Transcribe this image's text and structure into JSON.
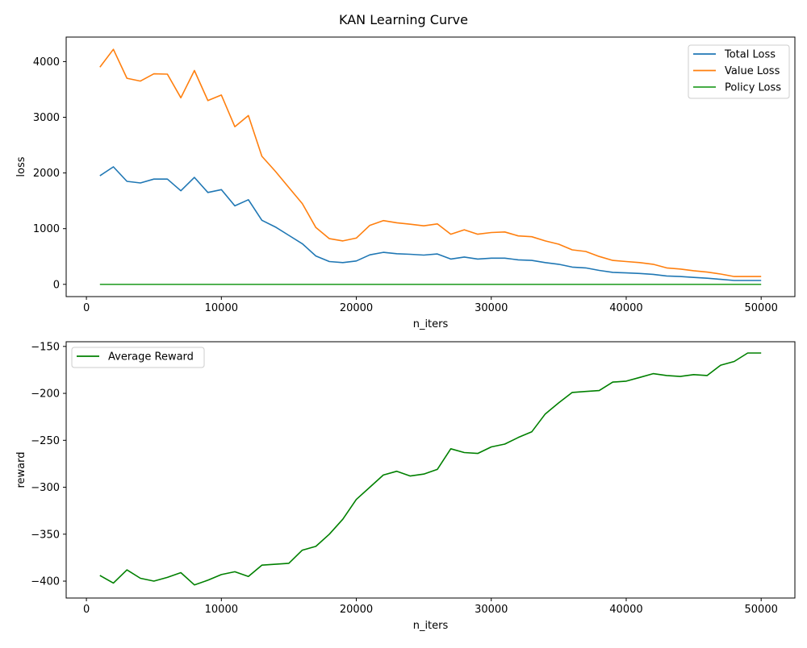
{
  "figure": {
    "title": "KAN Learning Curve"
  },
  "chart_data": [
    {
      "type": "line",
      "xlabel": "n_iters",
      "ylabel": "loss",
      "xlim": [
        -1500,
        52500
      ],
      "ylim": [
        -220,
        4440
      ],
      "xticks": [
        0,
        10000,
        20000,
        30000,
        40000,
        50000
      ],
      "xtick_labels": [
        "0",
        "10000",
        "20000",
        "30000",
        "40000",
        "50000"
      ],
      "yticks": [
        0,
        1000,
        2000,
        3000,
        4000
      ],
      "ytick_labels": [
        "0",
        "1000",
        "2000",
        "3000",
        "4000"
      ],
      "legend_position": "top-right",
      "grid": false,
      "x": [
        1000,
        2000,
        3000,
        4000,
        5000,
        6000,
        7000,
        8000,
        9000,
        10000,
        11000,
        12000,
        13000,
        14000,
        15000,
        16000,
        17000,
        18000,
        19000,
        20000,
        21000,
        22000,
        23000,
        24000,
        25000,
        26000,
        27000,
        28000,
        29000,
        30000,
        31000,
        32000,
        33000,
        34000,
        35000,
        36000,
        37000,
        38000,
        39000,
        40000,
        41000,
        42000,
        43000,
        44000,
        45000,
        46000,
        47000,
        48000,
        49000,
        50000
      ],
      "series": [
        {
          "name": "Total Loss",
          "color": "#1f77b4",
          "values": [
            1950,
            2110,
            1850,
            1820,
            1890,
            1890,
            1680,
            1920,
            1650,
            1700,
            1410,
            1520,
            1150,
            1030,
            880,
            730,
            510,
            410,
            390,
            420,
            530,
            575,
            550,
            540,
            525,
            545,
            455,
            490,
            455,
            470,
            470,
            440,
            430,
            390,
            360,
            310,
            295,
            250,
            215,
            205,
            195,
            180,
            150,
            140,
            125,
            110,
            90,
            70,
            70,
            70
          ]
        },
        {
          "name": "Value Loss",
          "color": "#ff7f0e",
          "values": [
            3900,
            4220,
            3700,
            3650,
            3780,
            3775,
            3350,
            3840,
            3300,
            3400,
            2830,
            3030,
            2300,
            2030,
            1740,
            1450,
            1020,
            820,
            780,
            830,
            1060,
            1145,
            1105,
            1080,
            1050,
            1085,
            900,
            980,
            900,
            930,
            940,
            870,
            855,
            780,
            720,
            620,
            590,
            500,
            430,
            410,
            390,
            360,
            295,
            275,
            245,
            220,
            185,
            140,
            140,
            140
          ]
        },
        {
          "name": "Policy Loss",
          "color": "#2ca02c",
          "values": [
            0,
            0,
            0,
            0,
            0,
            0,
            0,
            0,
            0,
            0,
            0,
            0,
            0,
            0,
            0,
            0,
            0,
            0,
            0,
            0,
            0,
            0,
            0,
            0,
            0,
            0,
            0,
            0,
            0,
            0,
            0,
            0,
            0,
            0,
            0,
            0,
            0,
            0,
            0,
            0,
            0,
            0,
            0,
            0,
            0,
            0,
            0,
            0,
            0,
            0
          ]
        }
      ]
    },
    {
      "type": "line",
      "xlabel": "n_iters",
      "ylabel": "reward",
      "xlim": [
        -1500,
        52500
      ],
      "ylim": [
        -418,
        -145
      ],
      "xticks": [
        0,
        10000,
        20000,
        30000,
        40000,
        50000
      ],
      "xtick_labels": [
        "0",
        "10000",
        "20000",
        "30000",
        "40000",
        "50000"
      ],
      "yticks": [
        -400,
        -350,
        -300,
        -250,
        -200,
        -150
      ],
      "ytick_labels": [
        "−400",
        "−350",
        "−300",
        "−250",
        "−200",
        "−150"
      ],
      "legend_position": "top-left",
      "grid": false,
      "x": [
        1000,
        2000,
        3000,
        4000,
        5000,
        6000,
        7000,
        8000,
        9000,
        10000,
        11000,
        12000,
        13000,
        14000,
        15000,
        16000,
        17000,
        18000,
        19000,
        20000,
        21000,
        22000,
        23000,
        24000,
        25000,
        26000,
        27000,
        28000,
        29000,
        30000,
        31000,
        32000,
        33000,
        34000,
        35000,
        36000,
        37000,
        38000,
        39000,
        40000,
        41000,
        42000,
        43000,
        44000,
        45000,
        46000,
        47000,
        48000,
        49000,
        50000
      ],
      "series": [
        {
          "name": "Average Reward",
          "color": "#008000",
          "values": [
            -394,
            -402,
            -388,
            -397,
            -400,
            -396,
            -391,
            -404,
            -399,
            -393,
            -390,
            -395,
            -383,
            -382,
            -381,
            -367,
            -363,
            -350,
            -334,
            -313,
            -300,
            -287,
            -283,
            -288,
            -286,
            -281,
            -259,
            -263,
            -264,
            -257,
            -254,
            -247,
            -241,
            -222,
            -210,
            -199,
            -198,
            -197,
            -188,
            -187,
            -183,
            -179,
            -181,
            -182,
            -180,
            -181,
            -170,
            -166,
            -157,
            -157
          ]
        }
      ]
    }
  ]
}
